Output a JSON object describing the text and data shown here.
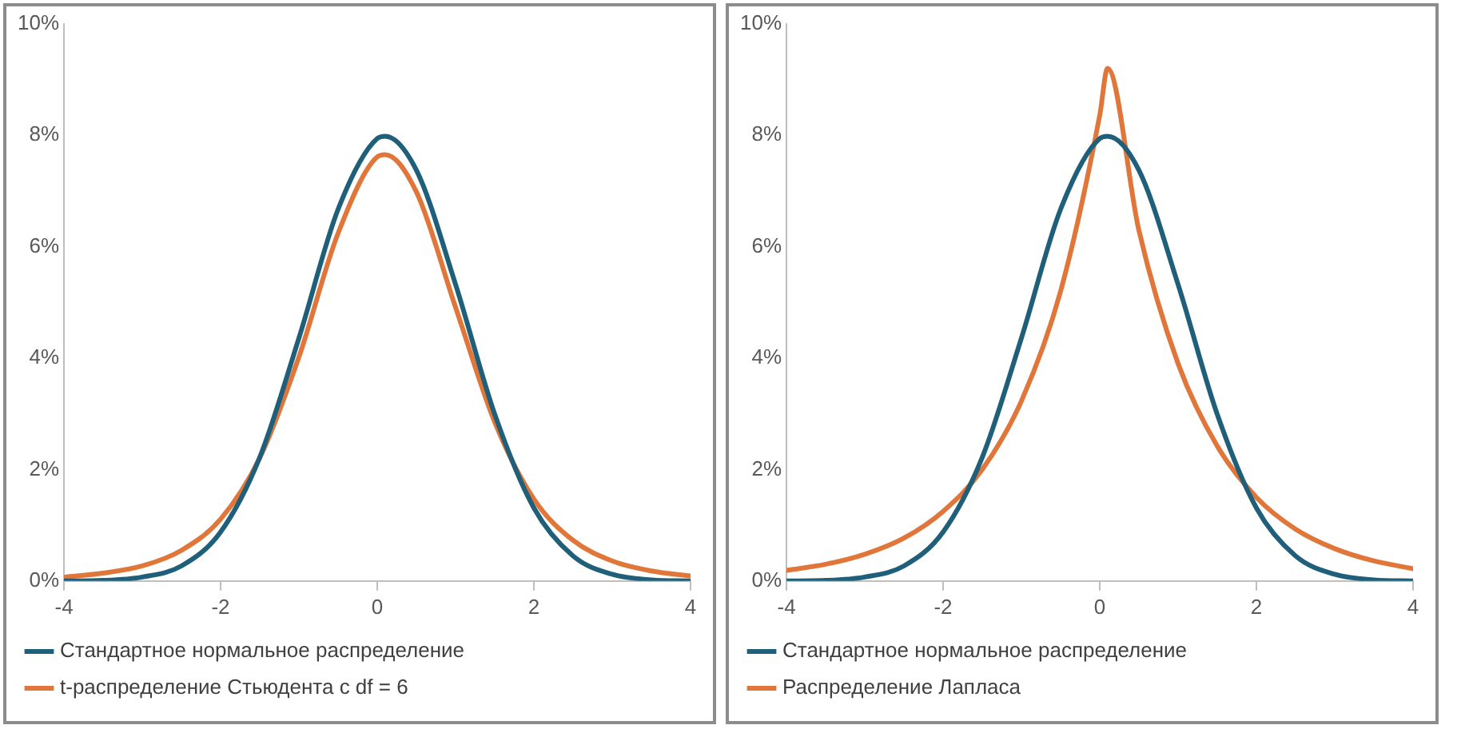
{
  "chart_data": [
    {
      "type": "line",
      "x": [
        -4,
        -3.5,
        -3,
        -2.5,
        -2,
        -1.5,
        -1,
        -0.5,
        0,
        0.1,
        0.5,
        1,
        1.5,
        2,
        2.5,
        3,
        3.5,
        4
      ],
      "xlim": [
        -4,
        4
      ],
      "xticks": [
        -4,
        -2,
        0,
        2,
        4
      ],
      "ylim": [
        0,
        10
      ],
      "yticks": [
        {
          "value": 0,
          "label": "0%"
        },
        {
          "value": 2,
          "label": "2%"
        },
        {
          "value": 4,
          "label": "4%"
        },
        {
          "value": 6,
          "label": "6%"
        },
        {
          "value": 8,
          "label": "8%"
        },
        {
          "value": 10,
          "label": "10%"
        }
      ],
      "grid": false,
      "legend": "bottom",
      "marker": "none",
      "line_style": "solid",
      "series": [
        {
          "name": "Стандартное нормальное распределение",
          "color": "#1f5f7a",
          "values": [
            0,
            0.01,
            0.07,
            0.27,
            0.88,
            2.22,
            4.36,
            6.67,
            7.94,
            7.98,
            7.37,
            5.32,
            2.99,
            1.31,
            0.45,
            0.12,
            0.02,
            0
          ]
        },
        {
          "name": "t-распределение Стьюдента с df = 6",
          "color": "#e0763a",
          "values": [
            0.07,
            0.14,
            0.27,
            0.55,
            1.11,
            2.21,
            4.02,
            6.24,
            7.61,
            7.65,
            6.98,
            4.91,
            2.85,
            1.47,
            0.73,
            0.36,
            0.18,
            0.09
          ]
        }
      ]
    },
    {
      "type": "line",
      "x": [
        -4,
        -3.5,
        -3,
        -2.5,
        -2,
        -1.5,
        -1,
        -0.5,
        0,
        0.1,
        0.5,
        1,
        1.5,
        2,
        2.5,
        3,
        3.5,
        4
      ],
      "xlim": [
        -4,
        4
      ],
      "xticks": [
        -4,
        -2,
        0,
        2,
        4
      ],
      "ylim": [
        0,
        10
      ],
      "yticks": [
        {
          "value": 0,
          "label": "0%"
        },
        {
          "value": 2,
          "label": "2%"
        },
        {
          "value": 4,
          "label": "4%"
        },
        {
          "value": 6,
          "label": "6%"
        },
        {
          "value": 8,
          "label": "8%"
        },
        {
          "value": 10,
          "label": "10%"
        }
      ],
      "grid": false,
      "legend": "bottom",
      "marker": "none",
      "line_style": "solid",
      "series": [
        {
          "name": "Стандартное нормальное распределение",
          "color": "#1f5f7a",
          "values": [
            0,
            0.01,
            0.07,
            0.27,
            0.88,
            2.22,
            4.36,
            6.67,
            7.94,
            7.98,
            7.37,
            5.32,
            2.99,
            1.31,
            0.45,
            0.12,
            0.02,
            0
          ]
        },
        {
          "name": "Распределение Лапласа",
          "color": "#e0763a",
          "values": [
            0.19,
            0.3,
            0.48,
            0.77,
            1.25,
            2.0,
            3.23,
            5.2,
            8.36,
            9.2,
            6.29,
            3.9,
            2.42,
            1.5,
            0.93,
            0.58,
            0.36,
            0.22
          ]
        }
      ]
    }
  ]
}
